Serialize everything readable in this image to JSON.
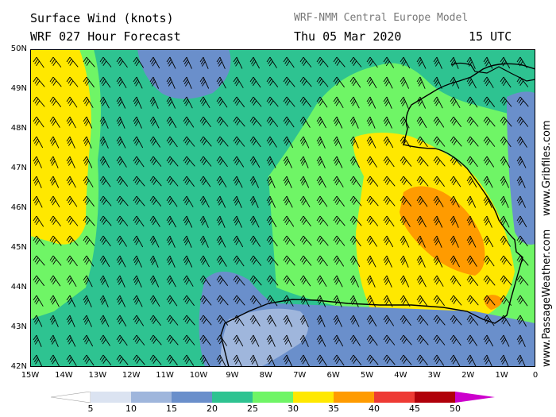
{
  "header": {
    "title_line1": "Surface Wind (knots)",
    "title_line2": "WRF 027 Hour Forecast",
    "model": "WRF-NMM Central Europe Model",
    "date": "Thu 05 Mar 2020",
    "time": "15 UTC"
  },
  "axes": {
    "x_ticks": [
      "15W",
      "14W",
      "13W",
      "12W",
      "11W",
      "10W",
      "9W",
      "8W",
      "7W",
      "6W",
      "5W",
      "4W",
      "3W",
      "2W",
      "1W",
      "0"
    ],
    "y_ticks": [
      "50N",
      "49N",
      "48N",
      "47N",
      "46N",
      "45N",
      "44N",
      "43N",
      "42N"
    ],
    "lon_range": [
      -15,
      0
    ],
    "lat_range": [
      42,
      50
    ]
  },
  "credits": {
    "passage": "www.PassageWeather.com",
    "grib": "www.Gribfiles.com"
  },
  "legend": {
    "labels": [
      "5",
      "10",
      "15",
      "20",
      "25",
      "30",
      "35",
      "40",
      "45",
      "50"
    ],
    "colors": [
      "#ffffff",
      "#dbe3f1",
      "#9fb6dc",
      "#6a8fcb",
      "#2ec391",
      "#6ff566",
      "#ffe800",
      "#ff9b00",
      "#ee3a34",
      "#b0000a",
      "#cc00cc"
    ]
  },
  "map": {
    "color_scale": "knots",
    "dominant_wind_from": "northwest",
    "zones": [
      {
        "name": "west-yellow-band",
        "speed_class": "30-35"
      },
      {
        "name": "biscay-core",
        "speed_class": "35-40"
      },
      {
        "name": "iberia-coast-calm",
        "speed_class": "10-15"
      }
    ]
  }
}
